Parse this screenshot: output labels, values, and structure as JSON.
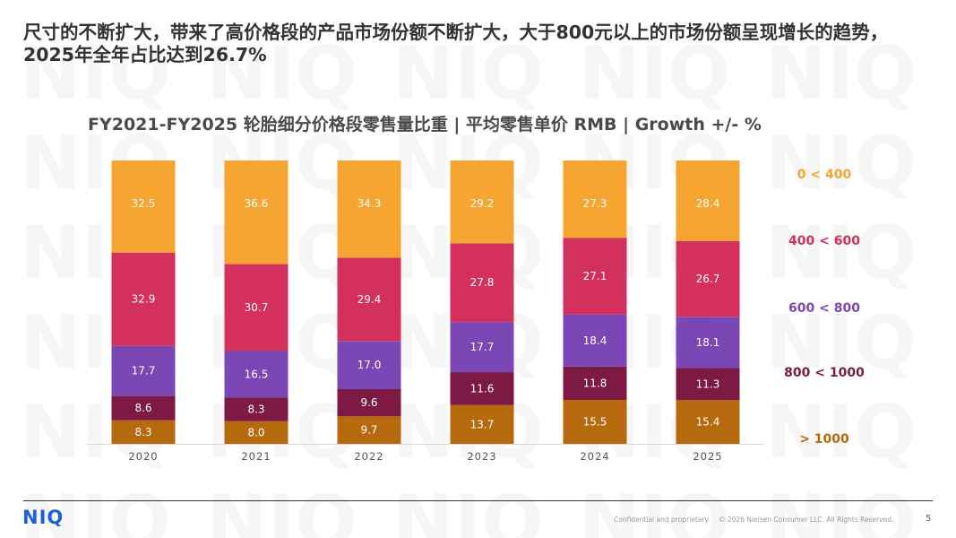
{
  "headline": "尺寸的不断扩大，带来了高价格段的产品市场份额不断扩大，大于800元以上的市场份额呈现增长的趋势，2025年全年占比达到26.7%",
  "watermark_text": "NIQ",
  "footer": {
    "logo": "NIQ",
    "confidential": "Confidential and proprietary",
    "copyright": "© 2026 Nielsen Consumer LLC. All Rights Reserved.",
    "page_number": "5"
  },
  "colors": {
    "0-400": "#f7a531",
    "400-600": "#d4305e",
    "600-800": "#7b47b4",
    "800-1000": "#7c1a44",
    "1000+": "#b7690d"
  },
  "chart_data": {
    "type": "bar",
    "stacked": true,
    "title": "FY2021-FY2025 轮胎细分价格段零售量比重 | 平均零售单价 RMB | Growth +/- %",
    "categories": [
      "2020",
      "2021",
      "2022",
      "2023",
      "2024",
      "2025"
    ],
    "ylim": [
      0,
      100
    ],
    "grid": false,
    "legend_position": "right",
    "series": [
      {
        "name": "> 1000",
        "key": "1000+",
        "values": [
          8.3,
          8.0,
          9.7,
          13.7,
          15.5,
          15.4
        ]
      },
      {
        "name": "800 < 1000",
        "key": "800-1000",
        "values": [
          8.6,
          8.3,
          9.6,
          11.6,
          11.8,
          11.3
        ]
      },
      {
        "name": "600 < 800",
        "key": "600-800",
        "values": [
          17.7,
          16.5,
          17.0,
          17.7,
          18.4,
          18.1
        ]
      },
      {
        "name": "400 < 600",
        "key": "400-600",
        "values": [
          32.9,
          30.7,
          29.4,
          27.8,
          27.1,
          26.7
        ]
      },
      {
        "name": "0 < 400",
        "key": "0-400",
        "values": [
          32.5,
          36.6,
          34.3,
          29.2,
          27.3,
          28.4
        ]
      }
    ]
  }
}
